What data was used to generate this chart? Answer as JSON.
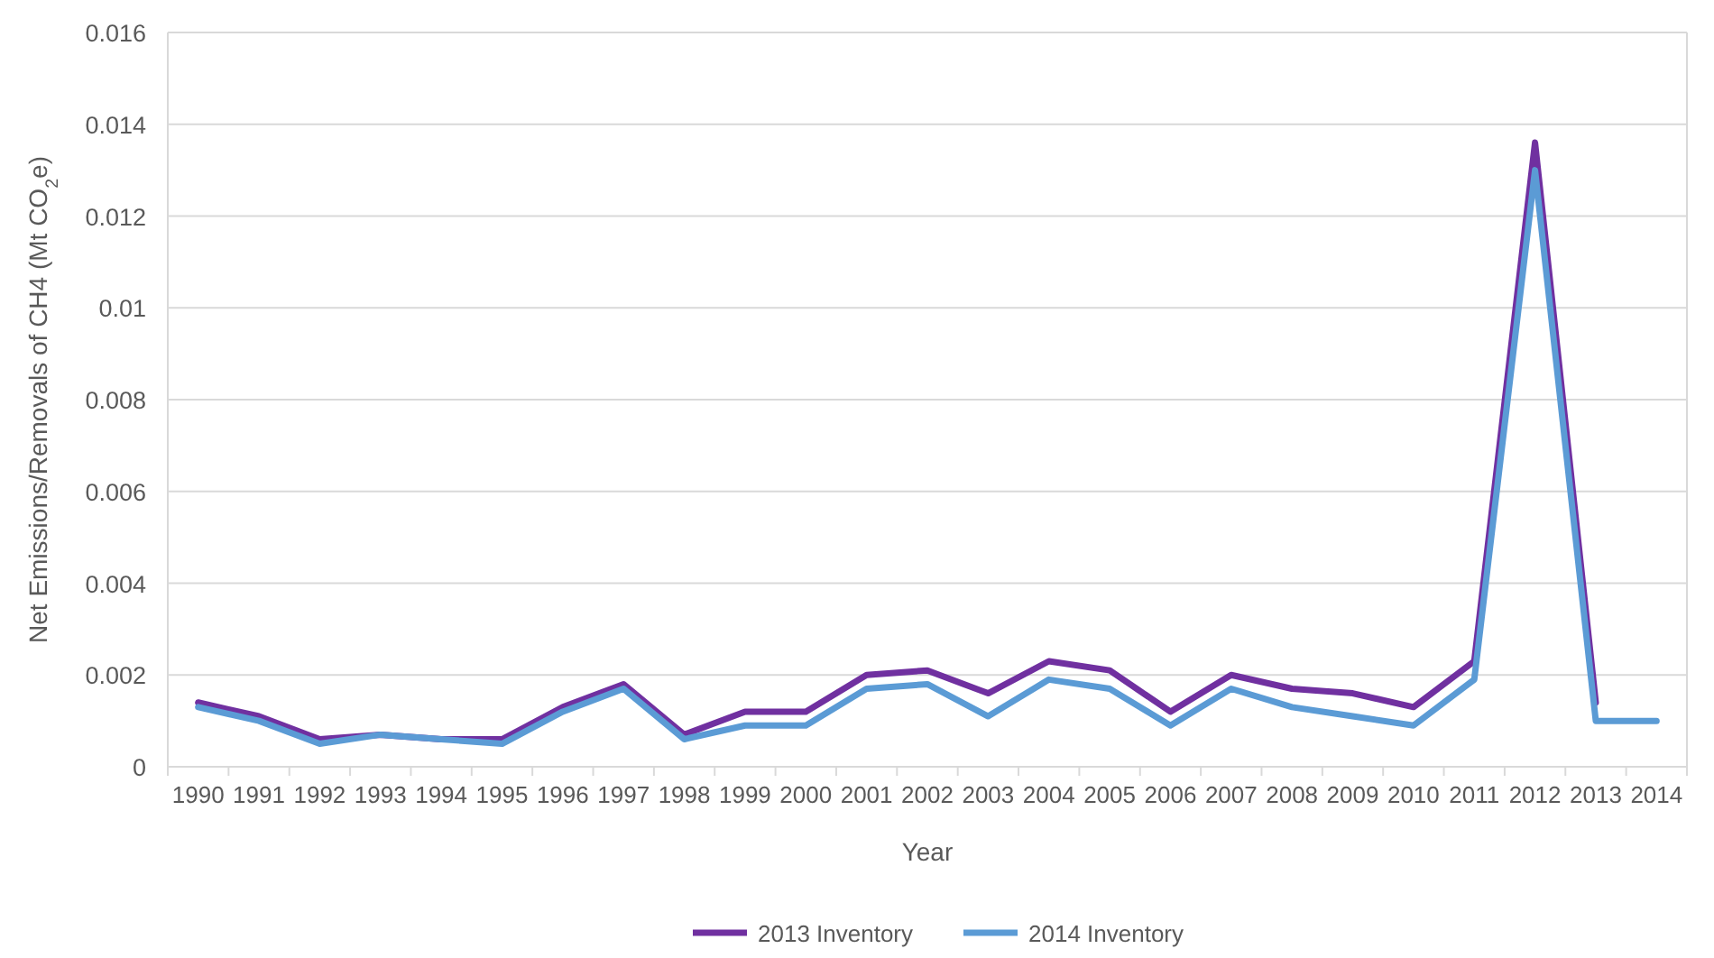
{
  "chart_data": {
    "type": "line",
    "xlabel": "Year",
    "ylabel": "Net Emissions/Removals of CH4 (Mt CO$_{2}$e)",
    "categories": [
      "1990",
      "1991",
      "1992",
      "1993",
      "1994",
      "1995",
      "1996",
      "1997",
      "1998",
      "1999",
      "2000",
      "2001",
      "2002",
      "2003",
      "2004",
      "2005",
      "2006",
      "2007",
      "2008",
      "2009",
      "2010",
      "2011",
      "2012",
      "2013",
      "2014"
    ],
    "series": [
      {
        "name": "2013 Inventory",
        "color": "#7030a0",
        "values": [
          0.0014,
          0.0011,
          0.0006,
          0.0007,
          0.0006,
          0.0006,
          0.0013,
          0.0018,
          0.0007,
          0.0012,
          0.0012,
          0.002,
          0.0021,
          0.0016,
          0.0023,
          0.0021,
          0.0012,
          0.002,
          0.0017,
          0.0016,
          0.0013,
          0.0023,
          0.0136,
          0.0014,
          null
        ]
      },
      {
        "name": "2014 Inventory",
        "color": "#5b9bd5",
        "values": [
          0.0013,
          0.001,
          0.0005,
          0.0007,
          0.0006,
          0.0005,
          0.0012,
          0.0017,
          0.0006,
          0.0009,
          0.0009,
          0.0017,
          0.0018,
          0.0011,
          0.0019,
          0.0017,
          0.0009,
          0.0017,
          0.0013,
          0.0011,
          0.0009,
          0.0019,
          0.013,
          0.001,
          0.001
        ]
      }
    ],
    "ylim": [
      0,
      0.016
    ],
    "yticks": [
      0,
      0.002,
      0.004,
      0.006,
      0.008,
      0.01,
      0.012,
      0.014,
      0.016
    ],
    "grid": "y",
    "legend": "bottom",
    "marker": "none",
    "line_style": "solid"
  }
}
